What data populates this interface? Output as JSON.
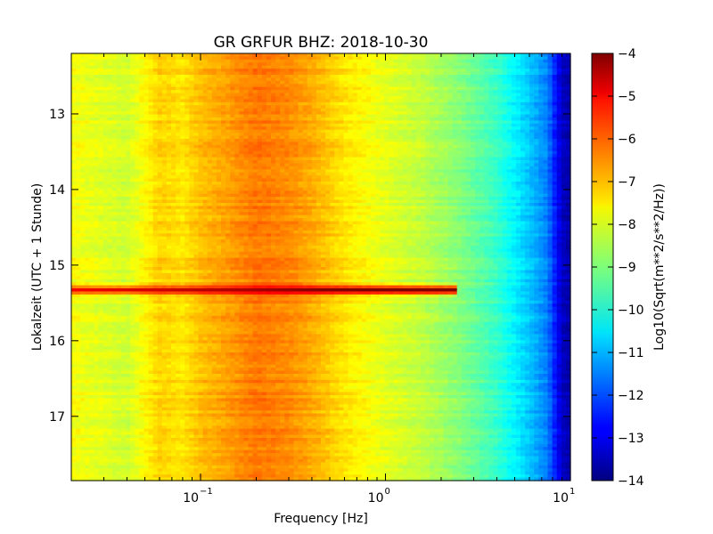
{
  "chart_data": {
    "type": "heatmap",
    "title": "GR GRFUR BHZ: 2018-10-30",
    "xlabel": "Frequency [Hz]",
    "ylabel": "Lokalzeit (UTC + 1 Stunde)",
    "colorbar_label": "Log10(Sqrt(m**2/s**2/Hz))",
    "x_scale": "log",
    "xlim": [
      0.02,
      10
    ],
    "ylim": [
      12.2,
      17.85
    ],
    "y_inverted": true,
    "x_ticks": [
      {
        "value": 0.1,
        "base": "10",
        "exp": "−1"
      },
      {
        "value": 1,
        "base": "10",
        "exp": "0"
      },
      {
        "value": 10,
        "base": "10",
        "exp": "1"
      }
    ],
    "y_ticks": [
      13,
      14,
      15,
      16,
      17
    ],
    "colorbar_range": [
      -14,
      -4
    ],
    "colorbar_ticks": [
      "−4",
      "−5",
      "−6",
      "−7",
      "−8",
      "−9",
      "−10",
      "−11",
      "−12",
      "−13",
      "−14"
    ],
    "colormap": "jet",
    "spectrum_profile": {
      "frequency_hz": [
        0.02,
        0.04,
        0.06,
        0.08,
        0.1,
        0.14,
        0.2,
        0.3,
        0.4,
        0.6,
        1.0,
        1.5,
        2.5,
        4.0,
        6.0,
        7.5,
        9.0,
        10.0
      ],
      "log10_amplitude": [
        -7.8,
        -8.2,
        -7.3,
        -7.5,
        -7.1,
        -6.8,
        -6.4,
        -6.6,
        -6.9,
        -7.5,
        -8.0,
        -8.3,
        -8.9,
        -9.7,
        -10.8,
        -11.5,
        -13.3,
        -13.6
      ]
    },
    "events": [
      {
        "time_h": 15.33,
        "peak_log10_amplitude": -5.2,
        "extends_to_hz": 2.5,
        "note": "broadband signal"
      }
    ]
  }
}
